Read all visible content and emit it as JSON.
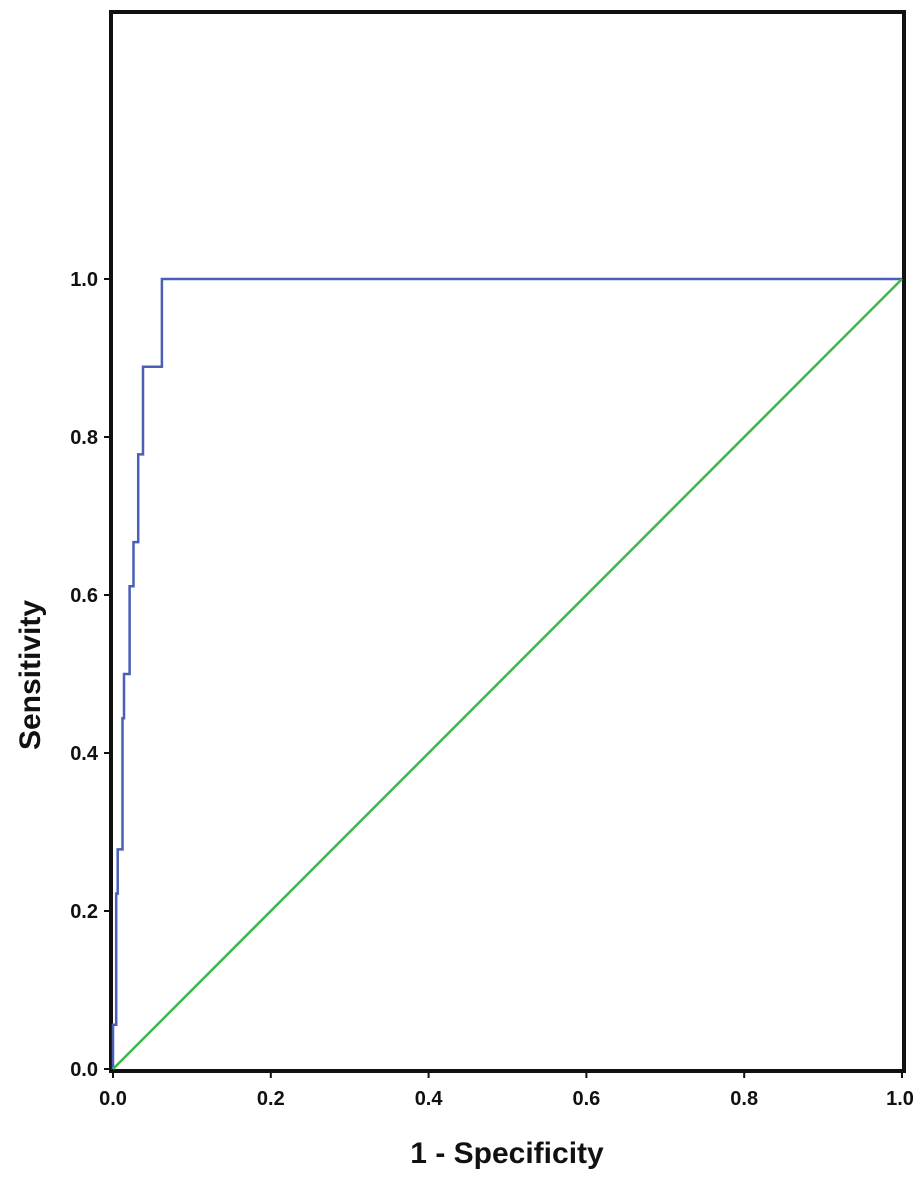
{
  "chart_data": {
    "type": "line",
    "xlabel": "1 - Specificity",
    "ylabel": "Sensitivity",
    "xlim": [
      0.0,
      1.0
    ],
    "ylim": [
      0.0,
      1.0
    ],
    "grid": false,
    "x_ticks": [
      "0.0",
      "0.2",
      "0.4",
      "0.6",
      "0.8",
      "1.0"
    ],
    "y_ticks": [
      "0.0",
      "0.2",
      "0.4",
      "0.6",
      "0.8",
      "1.0"
    ],
    "series": [
      {
        "color": "#4a5fb5",
        "step": true,
        "x": [
          0.0,
          0.0,
          0.004,
          0.004,
          0.006,
          0.006,
          0.012,
          0.012,
          0.014,
          0.014,
          0.021,
          0.021,
          0.026,
          0.026,
          0.032,
          0.032,
          0.038,
          0.038,
          0.062,
          0.062,
          1.0
        ],
        "y": [
          0.0,
          0.056,
          0.056,
          0.222,
          0.222,
          0.278,
          0.278,
          0.444,
          0.444,
          0.5,
          0.5,
          0.611,
          0.611,
          0.667,
          0.667,
          0.778,
          0.778,
          0.889,
          0.889,
          1.0,
          1.0
        ]
      },
      {
        "color": "#3cb84a",
        "step": false,
        "x": [
          0.0,
          1.0
        ],
        "y": [
          0.0,
          1.0
        ]
      }
    ]
  }
}
